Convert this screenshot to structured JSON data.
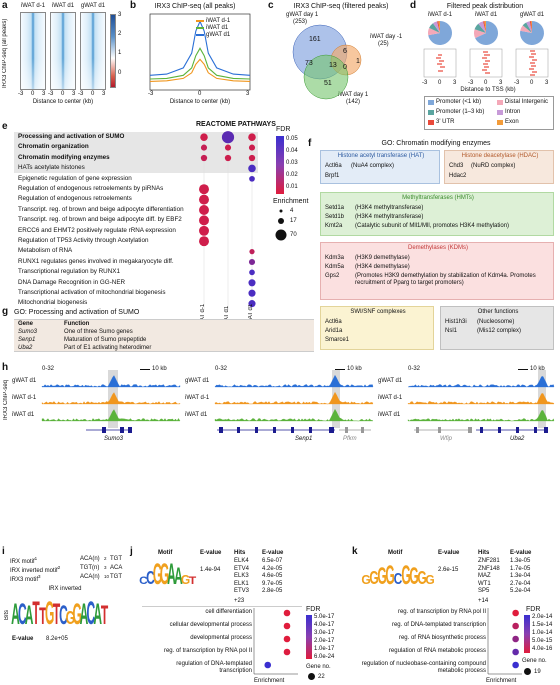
{
  "panel_a": {
    "label": "a",
    "titles": [
      "iWAT d-1",
      "iWAT d1",
      "gWAT d1"
    ],
    "ylabel": "IRX3 ChIP-seq (all peaks)",
    "ticks": [
      "-3",
      "0",
      "3"
    ],
    "xlabel": "Distance to center (kb)",
    "colorbar_ticks": [
      "3",
      "2",
      "1",
      "0"
    ],
    "colors": {
      "high": "#1f4e96",
      "mid": "#ffffff",
      "low": "#b2182b"
    }
  },
  "panel_b": {
    "label": "b",
    "title": "IRX3 ChIP-seq (all peaks)",
    "xlabel": "Distance to center (kb)",
    "chart_data": {
      "type": "line",
      "x": [
        -3,
        -2,
        -1,
        -0.5,
        -0.25,
        0,
        0.25,
        0.5,
        1,
        2,
        3
      ],
      "series": [
        {
          "name": "iWAT d-1",
          "color": "#f0961e",
          "values": [
            0.7,
            0.75,
            0.95,
            1.4,
            2.1,
            2.5,
            2.1,
            1.4,
            0.95,
            0.75,
            0.7
          ]
        },
        {
          "name": "iWAT d1",
          "color": "#5bb33b",
          "values": [
            0.9,
            0.95,
            1.2,
            1.8,
            2.8,
            3.4,
            2.8,
            1.8,
            1.2,
            0.95,
            0.9
          ]
        },
        {
          "name": "gWAT d1",
          "color": "#2a6fd6",
          "values": [
            1.2,
            1.3,
            1.8,
            3.0,
            4.8,
            5.6,
            4.8,
            3.0,
            1.8,
            1.3,
            1.2
          ]
        }
      ],
      "xticks": [
        "-3",
        "0",
        "3"
      ],
      "xlim": [
        -3,
        3
      ]
    }
  },
  "panel_c": {
    "label": "c",
    "title": "IRX3 ChIP-seq (filtered peaks)",
    "sets": [
      {
        "name": "gWAT day 1",
        "count": "(253)",
        "color": "#6a8fd8"
      },
      {
        "name": "iWAT day -1",
        "count": "(25)",
        "color": "#f2a96a"
      },
      {
        "name": "iWAT day 1",
        "count": "(142)",
        "color": "#74c46c"
      }
    ],
    "regions": [
      "161",
      "6",
      "1",
      "73",
      "13",
      "0",
      "51"
    ]
  },
  "panel_d": {
    "label": "d",
    "title": "Filtered peak distribution",
    "groups": [
      "iWAT d-1",
      "iWAT d1",
      "gWAT d1"
    ],
    "ticks": [
      "-3",
      "0",
      "3"
    ],
    "xlabel": "Distance to TSS (kb)",
    "legend": [
      {
        "label": "Promoter (<1 kb)",
        "color": "#7fa7d9"
      },
      {
        "label": "Distal Intergenic",
        "color": "#f4a8b8"
      },
      {
        "label": "Promoter (1–3 kb)",
        "color": "#5aa5a0"
      },
      {
        "label": "Intron",
        "color": "#c79ad8"
      },
      {
        "label": "3' UTR",
        "color": "#e94a3b"
      },
      {
        "label": "Exon",
        "color": "#f39c3a"
      }
    ],
    "chart_data": {
      "type": "pie",
      "series": [
        {
          "name": "iWAT d-1",
          "values": [
            0.72,
            0.1,
            0.08,
            0.06,
            0.02,
            0.02
          ]
        },
        {
          "name": "iWAT d1",
          "values": [
            0.68,
            0.12,
            0.09,
            0.07,
            0.02,
            0.02
          ]
        },
        {
          "name": "gWAT d1",
          "values": [
            0.78,
            0.08,
            0.06,
            0.05,
            0.02,
            0.01
          ]
        }
      ]
    }
  },
  "panel_e": {
    "label": "e",
    "title": "REACTOME PATHWAYS",
    "rows": [
      {
        "name": "Processing and activation of SUMO",
        "bold": true
      },
      {
        "name": "Chromatin organization",
        "bold": true
      },
      {
        "name": "Chromatin modifying enzymes",
        "bold": true
      },
      {
        "name": "HATs acetylate histones",
        "bold": false
      },
      {
        "name": "Epigenetic regulation of gene expression",
        "bold": false
      },
      {
        "name": "Regulation of endogenous retroelements by piRNAs",
        "bold": false
      },
      {
        "name": "Regulation of endogenous retroelements",
        "bold": false
      },
      {
        "name": "Transcript. reg. of brown and beige adipocyte differentiation",
        "bold": false
      },
      {
        "name": "Transcript. reg. of brown and beige adipocyte diff. by EBF2",
        "bold": false
      },
      {
        "name": "ERCC6 and EHMT2 positively regulate rRNA expression",
        "bold": false
      },
      {
        "name": "Regulation of TP53 Activity through Acetylation",
        "bold": false
      },
      {
        "name": "Metabolism of RNA",
        "bold": false
      },
      {
        "name": "RUNX1 regulates genes involved in megakaryocyte diff.",
        "bold": false
      },
      {
        "name": "Transcriptional regulation by RUNX1",
        "bold": false
      },
      {
        "name": "DNA Damage Recognition in GG-NER",
        "bold": false
      },
      {
        "name": "Transcriptional activation of mitochondrial biogenesis",
        "bold": false
      },
      {
        "name": "Mitochondrial biogenesis",
        "bold": false
      }
    ],
    "columns": [
      "iWAT d-1",
      "iWAT d1",
      "gWAT d1"
    ],
    "fdr_title": "FDR",
    "fdr_ticks": [
      "0.05",
      "0.04",
      "0.03",
      "0.02",
      "0.01"
    ],
    "enrich_title": "Enrichment",
    "enrich_ticks": [
      "4",
      "17",
      "70"
    ],
    "chart_data": {
      "type": "scatter",
      "points": [
        {
          "row": 0,
          "col": 0,
          "fdr": 0.005,
          "enrichment": 17
        },
        {
          "row": 0,
          "col": 1,
          "fdr": 0.04,
          "enrichment": 70
        },
        {
          "row": 0,
          "col": 2,
          "fdr": 0.005,
          "enrichment": 17
        },
        {
          "row": 1,
          "col": 0,
          "fdr": 0.008,
          "enrichment": 8
        },
        {
          "row": 1,
          "col": 1,
          "fdr": 0.006,
          "enrichment": 8
        },
        {
          "row": 1,
          "col": 2,
          "fdr": 0.006,
          "enrichment": 8
        },
        {
          "row": 2,
          "col": 0,
          "fdr": 0.008,
          "enrichment": 9
        },
        {
          "row": 2,
          "col": 1,
          "fdr": 0.006,
          "enrichment": 9
        },
        {
          "row": 2,
          "col": 2,
          "fdr": 0.006,
          "enrichment": 9
        },
        {
          "row": 3,
          "col": 2,
          "fdr": 0.045,
          "enrichment": 17
        },
        {
          "row": 4,
          "col": 2,
          "fdr": 0.045,
          "enrichment": 6
        },
        {
          "row": 5,
          "col": 0,
          "fdr": 0.005,
          "enrichment": 40
        },
        {
          "row": 6,
          "col": 0,
          "fdr": 0.005,
          "enrichment": 40
        },
        {
          "row": 7,
          "col": 0,
          "fdr": 0.005,
          "enrichment": 40
        },
        {
          "row": 8,
          "col": 0,
          "fdr": 0.005,
          "enrichment": 40
        },
        {
          "row": 9,
          "col": 0,
          "fdr": 0.005,
          "enrichment": 40
        },
        {
          "row": 10,
          "col": 0,
          "fdr": 0.005,
          "enrichment": 40
        },
        {
          "row": 11,
          "col": 2,
          "fdr": 0.01,
          "enrichment": 4
        },
        {
          "row": 12,
          "col": 2,
          "fdr": 0.03,
          "enrichment": 8
        },
        {
          "row": 13,
          "col": 2,
          "fdr": 0.045,
          "enrichment": 6
        },
        {
          "row": 14,
          "col": 2,
          "fdr": 0.045,
          "enrichment": 14
        },
        {
          "row": 15,
          "col": 2,
          "fdr": 0.045,
          "enrichment": 14
        },
        {
          "row": 16,
          "col": 2,
          "fdr": 0.045,
          "enrichment": 14
        }
      ]
    }
  },
  "panel_f": {
    "label": "f",
    "title": "GO: Chromatin modifying enzymes",
    "hat": {
      "title": "Histone acetyl transferase (HAT)",
      "items": [
        [
          "Actl6a",
          "(NuA4 complex)"
        ],
        [
          "Brpf1",
          ""
        ]
      ]
    },
    "hdac": {
      "title": "Histone deacetylase (HDAC)",
      "items": [
        [
          "Chd3",
          "(NuRD complex)"
        ],
        [
          "Hdac2",
          ""
        ]
      ]
    },
    "hmt": {
      "title": "Methyltransferases (HMTs)",
      "items": [
        [
          "Setd1a",
          "(H3K4 methyltransferase)"
        ],
        [
          "Setd1b",
          "(H3K4 methyltransferase)"
        ],
        [
          "Kmt2a",
          "(Catalytic subunit of Mll1/Mll, promotes H3K4 methylation)"
        ]
      ]
    },
    "kdm": {
      "title": "Demethylases (KDMs)",
      "items": [
        [
          "Kdm3a",
          "(H3K9 demethylase)"
        ],
        [
          "Kdm5a",
          "(H3K4 demethylase)"
        ],
        [
          "Gps2",
          "(Promotes H3K9 demethylation by stabilization of Kdm4a. Promotes recruitment of Pparg to target promoters)"
        ]
      ]
    },
    "swi": {
      "title": "SWI/SNF complexes",
      "items": [
        "Actl6a",
        "Arid1a",
        "Smarce1"
      ]
    },
    "other": {
      "title": "Other functions",
      "items": [
        [
          "Hist1h3i",
          "(Nucleosome)"
        ],
        [
          "Nsl1",
          "(Mis12 complex)"
        ]
      ]
    }
  },
  "panel_g": {
    "label": "g",
    "title": "GO: Processing and activation of SUMO",
    "headers": [
      "Gene",
      "Function"
    ],
    "rows": [
      [
        "Sumo3",
        "One of three Sumo genes"
      ],
      [
        "Senp1",
        "Maturation of Sumo prepeptide"
      ],
      [
        "Uba2",
        "Part of E1 activating heterodimer"
      ]
    ]
  },
  "panel_h": {
    "label": "h",
    "ylabel": "IRX3 ChIP-seq",
    "range": "0-32",
    "scale": "10 kb",
    "tracks": [
      {
        "name": "gWAT d1",
        "color": "#2a6fd6"
      },
      {
        "name": "iWAT d-1",
        "color": "#f0961e"
      },
      {
        "name": "iWAT d1",
        "color": "#5bb33b"
      }
    ],
    "loci": [
      {
        "genes": [
          "Sumo3"
        ]
      },
      {
        "genes": [
          "Senp1",
          "Pfkm"
        ]
      },
      {
        "genes": [
          "Wfip",
          "Uba2"
        ]
      }
    ]
  },
  "panel_i": {
    "label": "i",
    "motifs": [
      {
        "name": "IRX motif",
        "sup": "1",
        "seq": "ACA(n)",
        "sub": "2",
        "end": "TGT"
      },
      {
        "name": "IRX inverted motif",
        "sup": "2",
        "seq": "TGT(n)",
        "sub": "3",
        "end": "ACA"
      },
      {
        "name": "IRX3 motif",
        "sup": "3",
        "seq": "ACA(n)",
        "sub": "10",
        "end": "TGT"
      }
    ],
    "logo_title": "IRX inverted",
    "logo_ylabel": "Bits",
    "logo_seq": "ACATTGTCGGACAT",
    "evalue_label": "E-value",
    "evalue": "8.2e+05"
  },
  "panel_j": {
    "label": "j",
    "headers": [
      "Motif",
      "E-value",
      "Hits",
      "E-value"
    ],
    "motif_seq": "CCGGAAGT",
    "evalue": "1.4e-94",
    "hits": [
      [
        "ELK4",
        "6.5e-07"
      ],
      [
        "ETV4",
        "4.2e-05"
      ],
      [
        "ELK3",
        "4.6e-05"
      ],
      [
        "ELK1",
        "9.7e-05"
      ],
      [
        "ETV3",
        "2.8e-05"
      ]
    ],
    "more": "+23",
    "go_terms": [
      "cell differentiation",
      "cellular developmental process",
      "developmental process",
      "reg. of transcription by RNA pol II",
      "regulation of DNA-templated transcription"
    ],
    "xlabel": "Enrichment",
    "xticks": [
      "0",
      "5",
      "10",
      "15"
    ],
    "fdr_title": "FDR",
    "fdr_ticks": [
      "5.0e-17",
      "4.0e-17",
      "3.0e-17",
      "2.0e-17",
      "1.0e-17",
      "6.0e-24"
    ],
    "gene_title": "Gene no.",
    "gene_value": "22",
    "chart_data": {
      "type": "scatter",
      "points": [
        {
          "term": "cell differentiation",
          "enrichment": 12,
          "fdr": 6e-24
        },
        {
          "term": "cellular developmental process",
          "enrichment": 12,
          "fdr": 6e-24
        },
        {
          "term": "developmental process",
          "enrichment": 12,
          "fdr": 6e-24
        },
        {
          "term": "reg. of transcription by RNA pol II",
          "enrichment": 12,
          "fdr": 1e-18
        },
        {
          "term": "regulation of DNA-templated transcription",
          "enrichment": 5,
          "fdr": 5e-17
        }
      ]
    }
  },
  "panel_k": {
    "label": "k",
    "headers": [
      "Motif",
      "E-value",
      "Hits",
      "E-value"
    ],
    "motif_seq": "GGGGCGGGG",
    "evalue": "2.6e-15",
    "hits": [
      [
        "ZNF281",
        "1.3e-05"
      ],
      [
        "ZNF148",
        "1.7e-05"
      ],
      [
        "MAZ",
        "1.3e-04"
      ],
      [
        "WT1",
        "2.7e-04"
      ],
      [
        "SP5",
        "5.2e-04"
      ]
    ],
    "more": "+14",
    "go_terms": [
      "reg. of transcription by RNA pol II",
      "reg. of DNA-templated transcription",
      "reg. of RNA biosynthetic process",
      "regulation of RNA metabolic process",
      "regulation of nucleobase-containing compound metabolic process"
    ],
    "xlabel": "Enrichment",
    "xticks": [
      "0",
      "5",
      "10",
      "15"
    ],
    "fdr_title": "FDR",
    "fdr_ticks": [
      "2.0e-14",
      "1.5e-14",
      "1.0e-14",
      "5.0e-15",
      "4.0e-16"
    ],
    "gene_title": "Gene no.",
    "gene_value": "19",
    "chart_data": {
      "type": "scatter",
      "points": [
        {
          "term": "reg. of transcription by RNA pol II",
          "enrichment": 13,
          "fdr": 4e-16
        },
        {
          "term": "reg. of DNA-templated transcription",
          "enrichment": 13,
          "fdr": 5e-15
        },
        {
          "term": "reg. of RNA biosynthetic process",
          "enrichment": 13,
          "fdr": 1e-14
        },
        {
          "term": "regulation of RNA metabolic process",
          "enrichment": 13,
          "fdr": 1.5e-14
        },
        {
          "term": "regulation of nucleobase-containing compound metabolic process",
          "enrichment": 13,
          "fdr": 2e-14
        }
      ]
    }
  }
}
